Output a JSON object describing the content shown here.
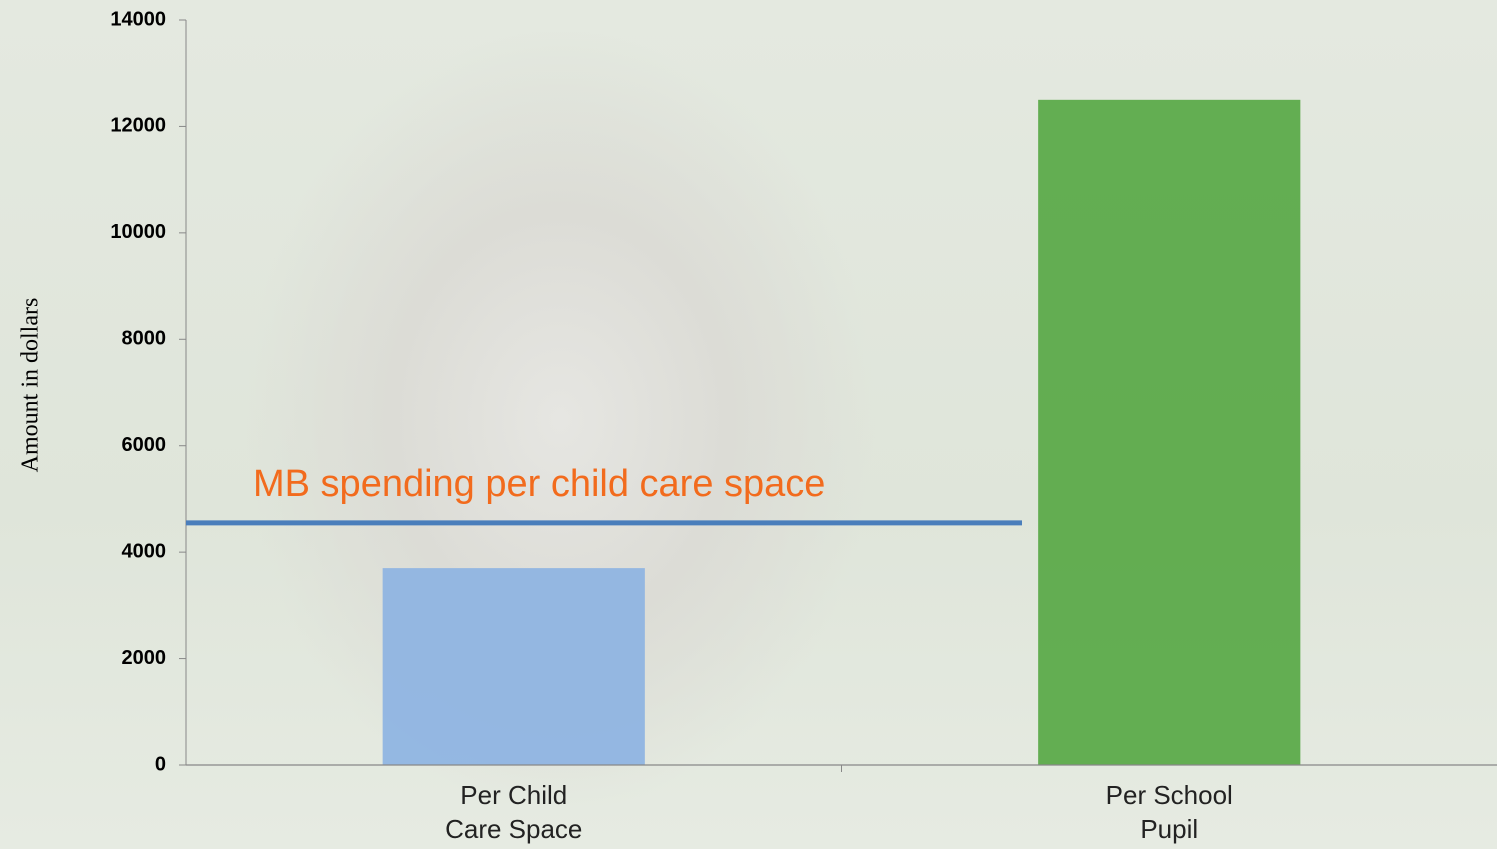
{
  "chart_data": {
    "type": "bar",
    "y_label": "Amount in dollars",
    "categories": [
      "Per Child Care Space",
      "Per School Pupil"
    ],
    "values": [
      3700,
      12500
    ],
    "colors": [
      "#8db3e2",
      "#58a845"
    ],
    "ylim": [
      0,
      14000
    ],
    "yticks": [
      0,
      2000,
      4000,
      6000,
      8000,
      10000,
      12000,
      14000
    ],
    "reference_line": {
      "value": 4550,
      "label": "MB spending per child care space",
      "color": "#4a7ebb",
      "label_color": "#f26b1d"
    }
  }
}
